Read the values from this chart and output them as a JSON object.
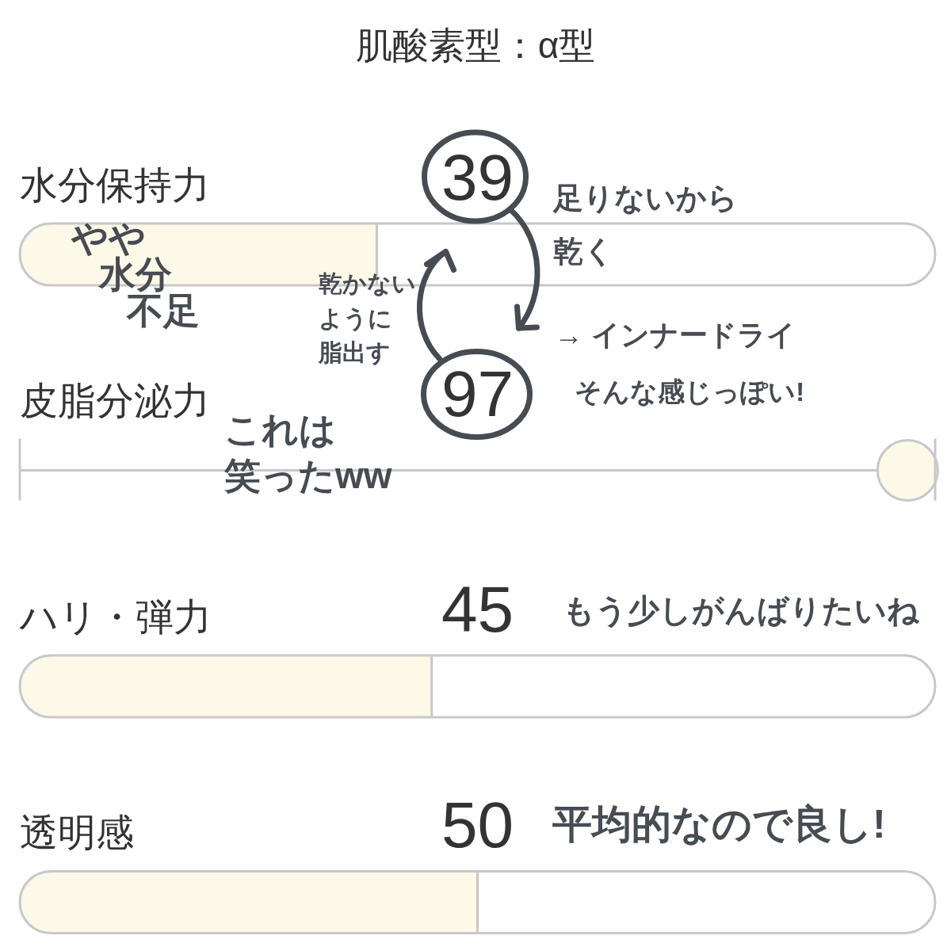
{
  "chart_data": {
    "type": "bar",
    "orientation": "horizontal",
    "title": "肌酸素型：α型",
    "categories": [
      "水分保持力",
      "皮脂分泌力",
      "ハリ・弾力",
      "透明感"
    ],
    "series": [
      {
        "color": "#fcf9e9",
        "values": [
          39,
          null,
          45,
          50
        ],
        "value_labels": [
          "39",
          null,
          "45",
          "50"
        ]
      },
      {
        "type": "lollipop",
        "marker": "circle",
        "color": "#fcf9e9",
        "values": [
          null,
          97,
          null,
          null
        ]
      }
    ],
    "xlim": [
      0,
      100
    ],
    "tick_labels": "y",
    "annotations": [
      "やや水分不足",
      "足りないから乾く",
      "乾かないように脂出す",
      "→ インナードライ",
      "97",
      "そんな感じっぽい!",
      "これは笑ったww",
      "もう少しがんばりたいね",
      "平均的なので良し!"
    ]
  }
}
